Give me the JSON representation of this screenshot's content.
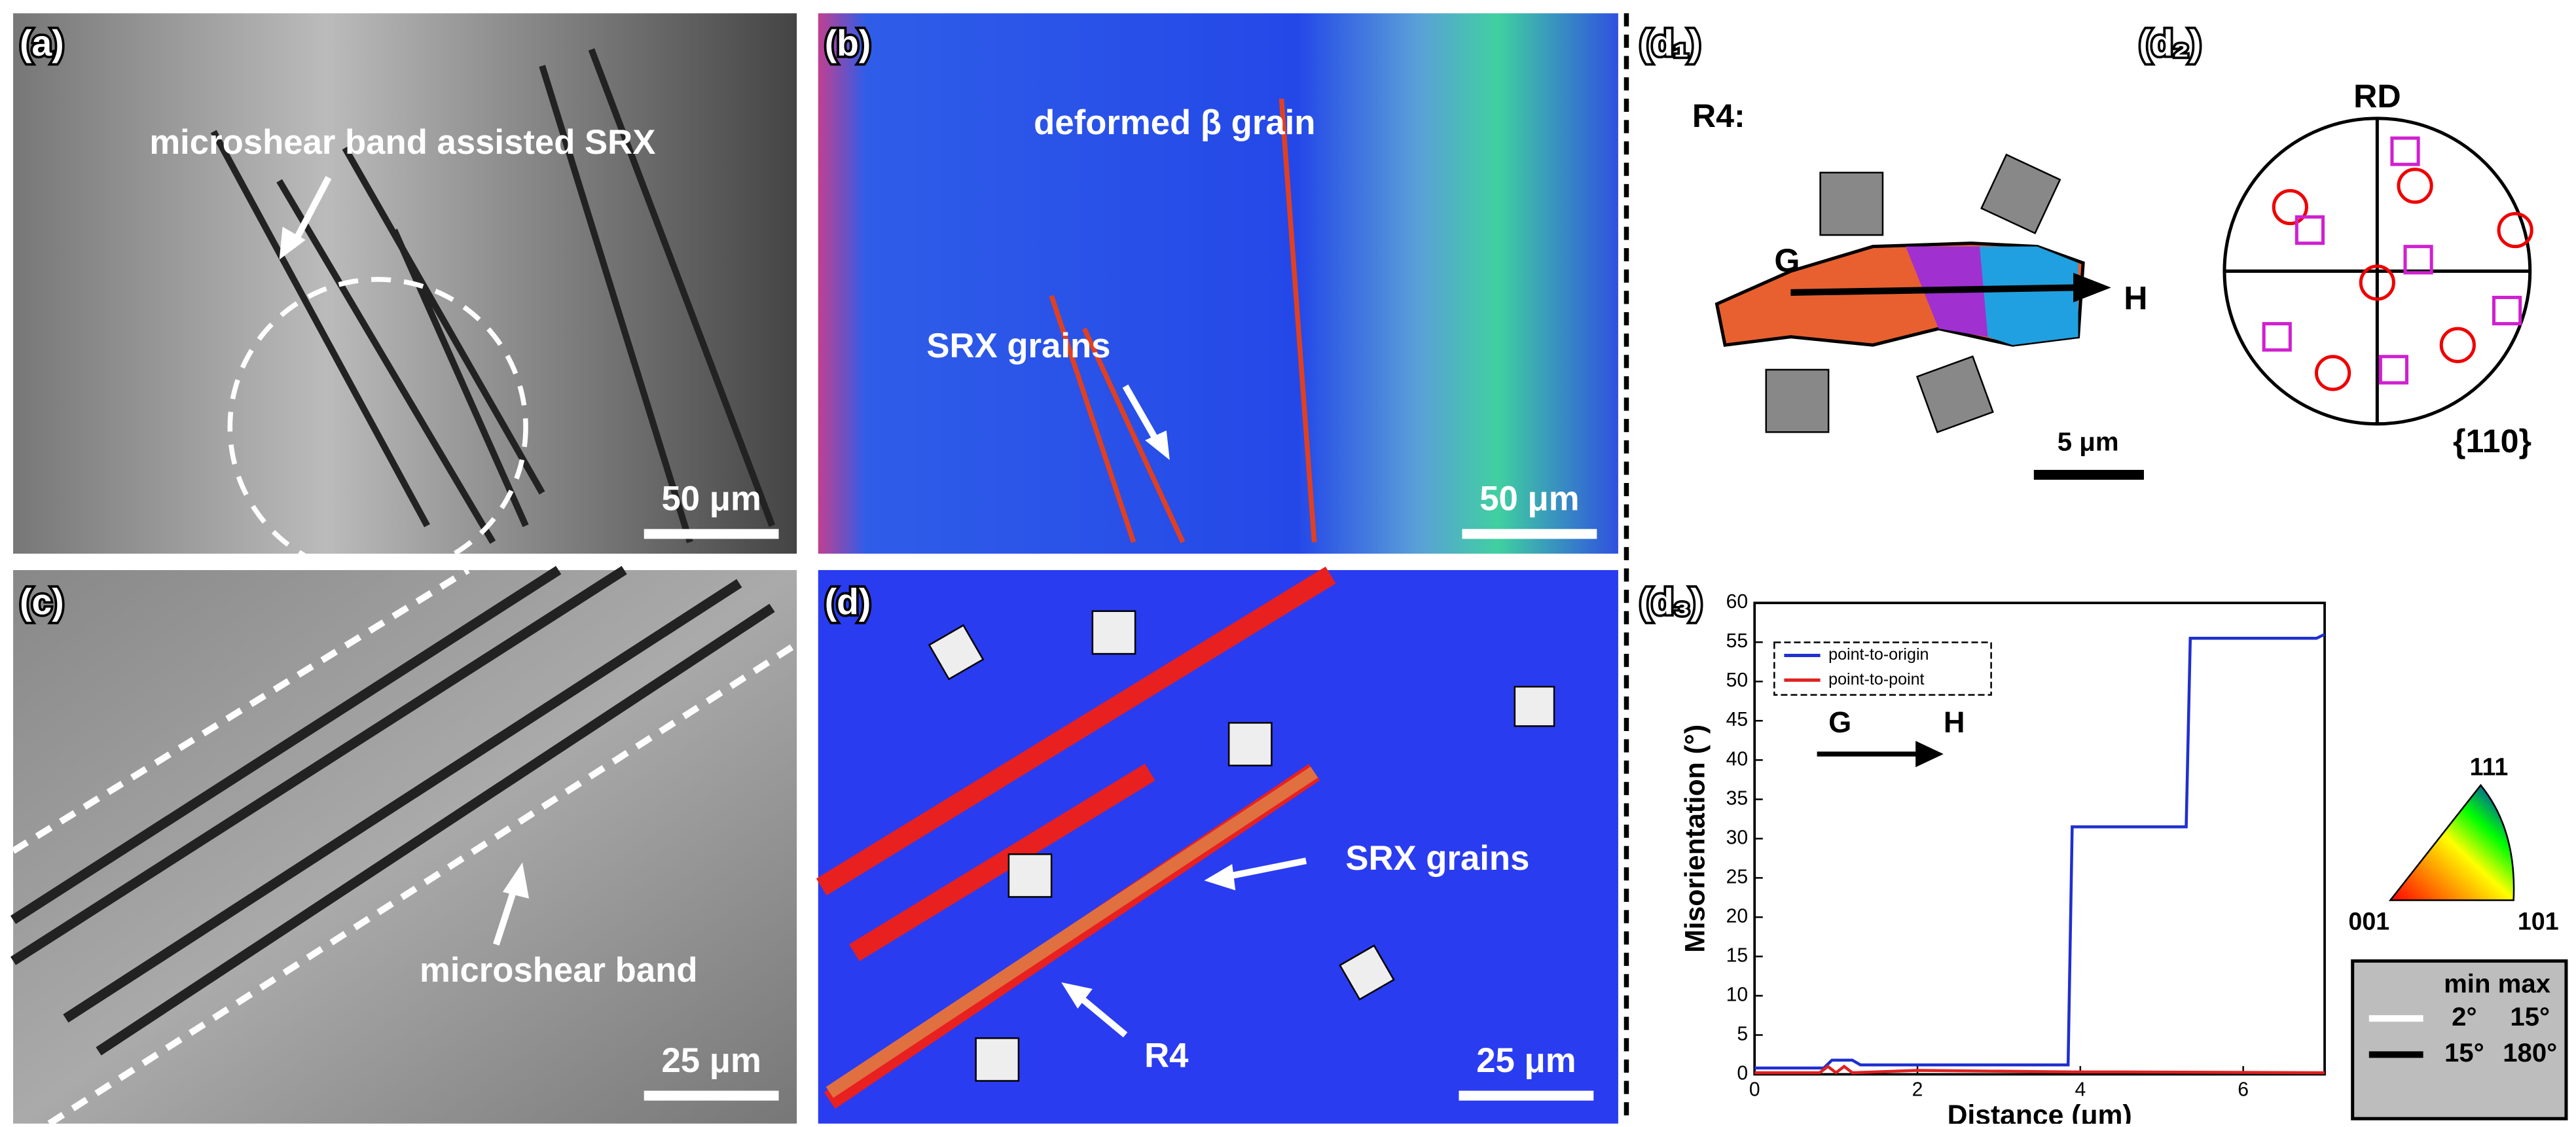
{
  "panels": {
    "a": {
      "label": "(a)",
      "annotation": "microshear band assisted SRX",
      "scale_bar": "50 μm"
    },
    "b": {
      "label": "(b)",
      "annotation": "deformed β grain",
      "annotation2": "SRX grains",
      "scale_bar": "50 μm"
    },
    "c": {
      "label": "(c)",
      "annotation": "microshear band",
      "scale_bar": "25 μm"
    },
    "d": {
      "label": "(d)",
      "annotation": "SRX grains",
      "region": "R4",
      "scale_bar": "25 μm"
    },
    "d1": {
      "label": "(d₁)",
      "region": "R4:",
      "start": "G",
      "end": "H",
      "scale_bar": "5 μm"
    },
    "d2": {
      "label": "(d₂)",
      "direction": "RD",
      "plane": "{110}"
    },
    "d3": {
      "label": "(d₃)"
    }
  },
  "ipf_key": {
    "corners": [
      "111",
      "001",
      "101"
    ]
  },
  "boundary_legend": {
    "header": "min max",
    "rows": [
      [
        "2°",
        "15°"
      ],
      [
        "15°",
        "180°"
      ]
    ]
  },
  "chart_data": {
    "type": "line",
    "xlabel": "Distance (μm)",
    "ylabel": "Misorientation (°)",
    "start": "G",
    "end": "H",
    "xlim": [
      0,
      7
    ],
    "ylim": [
      0,
      60
    ],
    "xticks": [
      0,
      2,
      4,
      6
    ],
    "yticks": [
      0,
      5,
      10,
      15,
      20,
      25,
      30,
      35,
      40,
      45,
      50,
      55,
      60
    ],
    "legend": "upper left",
    "series": [
      {
        "name": "point-to-origin",
        "color": "#1f2fd0",
        "x": [
          0,
          0.85,
          0.95,
          1.2,
          1.3,
          3.85,
          3.9,
          5.3,
          5.35,
          6.9,
          7.0
        ],
        "values": [
          0.8,
          0.8,
          1.8,
          1.8,
          1.2,
          1.2,
          31.5,
          31.5,
          55.5,
          55.5,
          56
        ]
      },
      {
        "name": "point-to-point",
        "color": "#e02020",
        "x": [
          0,
          0.8,
          0.9,
          1.0,
          1.1,
          1.2,
          2.0,
          3.9,
          4.5,
          7.0
        ],
        "values": [
          0.2,
          0.2,
          1,
          0.2,
          1,
          0.2,
          0.5,
          0.3,
          0.3,
          0.2
        ]
      }
    ]
  }
}
